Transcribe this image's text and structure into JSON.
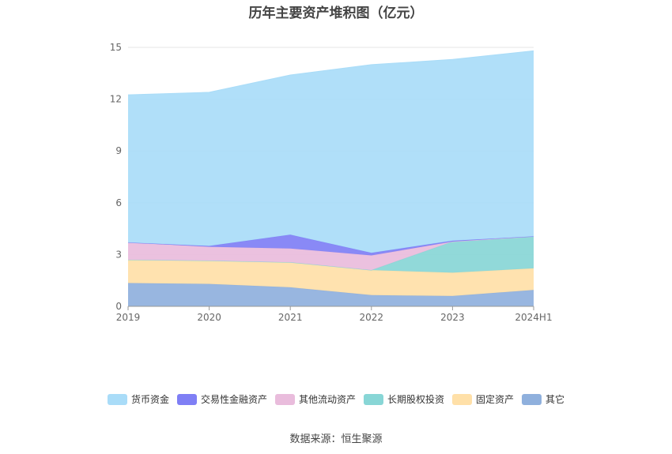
{
  "chart_data": {
    "type": "area",
    "title": "历年主要资产堆积图（亿元）",
    "categories": [
      "2019",
      "2020",
      "2021",
      "2022",
      "2023",
      "2024H1"
    ],
    "y_ticks": [
      "0",
      "3",
      "6",
      "9",
      "12",
      "15"
    ],
    "ylim": [
      0,
      15
    ],
    "stacked": true,
    "grid": true,
    "legend_position": "bottom",
    "series": [
      {
        "name": "其它",
        "color": "#8fb0dd",
        "values": [
          1.35,
          1.3,
          1.1,
          0.65,
          0.6,
          0.95
        ]
      },
      {
        "name": "固定资产",
        "color": "#ffe0a8",
        "values": [
          1.35,
          1.35,
          1.45,
          1.45,
          1.35,
          1.25
        ]
      },
      {
        "name": "长期股权投资",
        "color": "#88d6d6",
        "values": [
          0,
          0,
          0,
          0,
          1.8,
          1.85
        ]
      },
      {
        "name": "其他流动资产",
        "color": "#e9bcdc",
        "values": [
          1.0,
          0.8,
          0.8,
          0.85,
          0,
          0
        ]
      },
      {
        "name": "交易性金融资产",
        "color": "#7f7ff5",
        "values": [
          0,
          0.05,
          0.8,
          0.15,
          0.05,
          0
        ]
      },
      {
        "name": "货币资金",
        "color": "#a9dcf8",
        "values": [
          8.55,
          8.9,
          9.25,
          10.9,
          10.5,
          10.75
        ]
      }
    ],
    "legend_order": [
      5,
      4,
      3,
      2,
      1,
      0
    ]
  },
  "source_note": "数据来源：恒生聚源"
}
